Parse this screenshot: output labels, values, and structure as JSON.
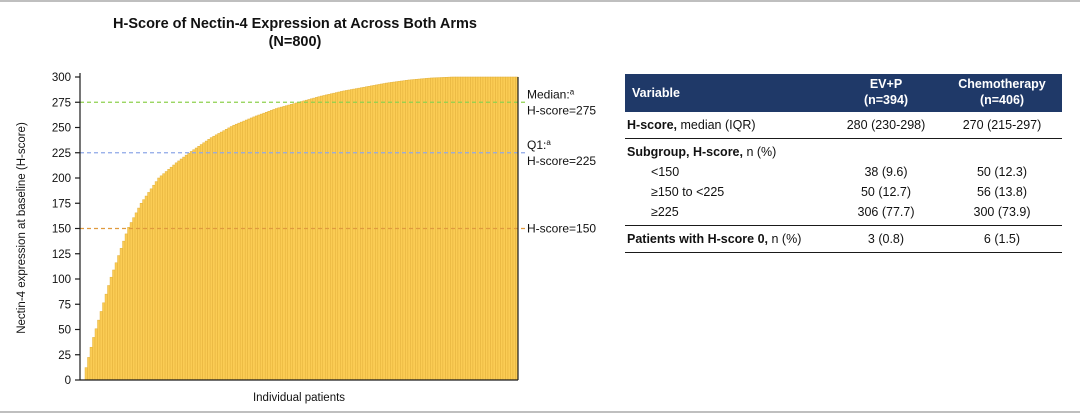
{
  "chart": {
    "title_line1": "H-Score of Nectin-4 Expression at Across Both Arms",
    "title_line2": "(N=800)",
    "ylabel": "Nectin-4 expression at baseline (H-score)",
    "xlabel": "Individual patients",
    "bar_color": "#FBCC54",
    "bar_edge_color": "#E2B03A"
  },
  "chart_data": {
    "type": "bar",
    "title": "H-Score of Nectin-4 Expression at Across Both Arms (N=800)",
    "xlabel": "Individual patients",
    "ylabel": "Nectin-4 expression at baseline (H-score)",
    "n_patients": 800,
    "ylim": [
      0,
      300
    ],
    "y_ticks": [
      0,
      25,
      50,
      75,
      100,
      125,
      150,
      175,
      200,
      225,
      250,
      275,
      300
    ],
    "reference_lines": [
      {
        "value": 275,
        "color": "#8fd14f",
        "label": "Median:",
        "sup": "a",
        "sublabel": "H-score=275"
      },
      {
        "value": 225,
        "color": "#8fa8e8",
        "label": "Q1:",
        "sup": "a",
        "sublabel": "H-score=225"
      },
      {
        "value": 150,
        "color": "#e09a3e",
        "label": "",
        "sup": "",
        "sublabel": "H-score=150"
      }
    ],
    "curve_points_fraction_vs_hscore": [
      [
        0.0,
        0
      ],
      [
        0.011,
        0
      ],
      [
        0.013,
        10
      ],
      [
        0.03,
        40
      ],
      [
        0.05,
        70
      ],
      [
        0.07,
        100
      ],
      [
        0.09,
        125
      ],
      [
        0.11,
        150
      ],
      [
        0.14,
        175
      ],
      [
        0.18,
        200
      ],
      [
        0.22,
        215
      ],
      [
        0.25,
        225
      ],
      [
        0.3,
        240
      ],
      [
        0.35,
        252
      ],
      [
        0.4,
        261
      ],
      [
        0.45,
        269
      ],
      [
        0.5,
        275
      ],
      [
        0.55,
        281
      ],
      [
        0.6,
        286
      ],
      [
        0.65,
        290
      ],
      [
        0.7,
        294
      ],
      [
        0.75,
        297
      ],
      [
        0.8,
        299
      ],
      [
        0.85,
        300
      ],
      [
        1.0,
        300
      ]
    ]
  },
  "table": {
    "header": {
      "variable": "Variable",
      "col1_line1": "EV+P",
      "col1_line2": "(n=394)",
      "col2_line1": "Chemotherapy",
      "col2_line2": "(n=406)"
    },
    "sections": [
      {
        "rows": [
          {
            "label_bold": "H-score,",
            "label_rest": " median (IQR)",
            "indent": false,
            "ev": "280 (230-298)",
            "chemo": "270 (215-297)"
          }
        ]
      },
      {
        "rows": [
          {
            "label_bold": "Subgroup, H-score,",
            "label_rest": " n (%)",
            "indent": false,
            "ev": "",
            "chemo": ""
          },
          {
            "label_bold": "",
            "label_rest": "<150",
            "indent": true,
            "ev": "38 (9.6)",
            "chemo": "50 (12.3)"
          },
          {
            "label_bold": "",
            "label_rest": "≥150 to <225",
            "indent": true,
            "ev": "50 (12.7)",
            "chemo": "56 (13.8)"
          },
          {
            "label_bold": "",
            "label_rest": "≥225",
            "indent": true,
            "ev": "306 (77.7)",
            "chemo": "300 (73.9)"
          }
        ]
      },
      {
        "rows": [
          {
            "label_bold": "Patients with H-score 0,",
            "label_rest": " n (%)",
            "indent": false,
            "ev": "3 (0.8)",
            "chemo": "6 (1.5)"
          }
        ]
      }
    ]
  }
}
